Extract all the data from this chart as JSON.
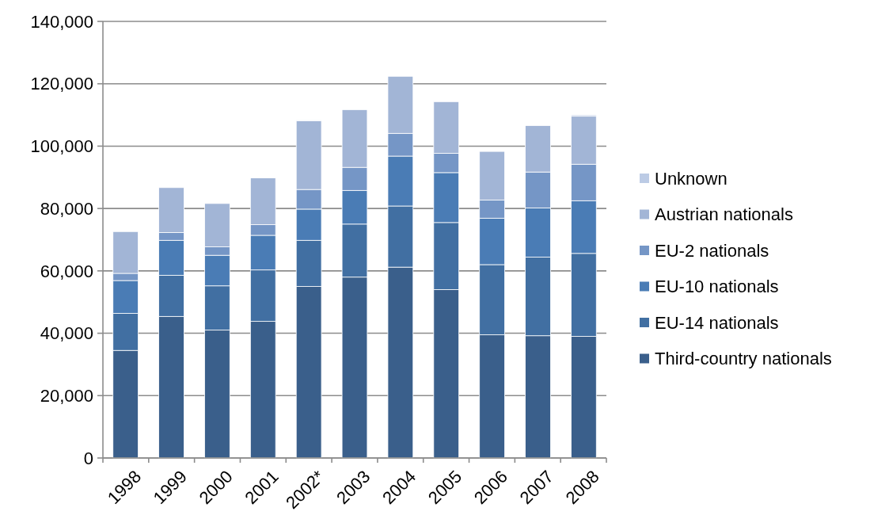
{
  "chart_data": {
    "type": "bar",
    "stacked": true,
    "categories": [
      "1998",
      "1999",
      "2000",
      "2001",
      "2002*",
      "2003",
      "2004",
      "2005",
      "2006",
      "2007",
      "2008"
    ],
    "series": [
      {
        "name": "Third-country nationals",
        "color": "#3a5f8b",
        "values": [
          34500,
          45400,
          41000,
          43800,
          55000,
          58000,
          61200,
          54000,
          39500,
          39200,
          39000
        ]
      },
      {
        "name": "EU-14 nationals",
        "color": "#416fa2",
        "values": [
          11900,
          13200,
          14200,
          16500,
          14800,
          17000,
          19600,
          21500,
          22500,
          25200,
          26600
        ]
      },
      {
        "name": "EU-10 nationals",
        "color": "#4a7cb5",
        "values": [
          10500,
          11200,
          9800,
          11100,
          10000,
          10800,
          16000,
          16000,
          14900,
          15800,
          16900
        ]
      },
      {
        "name": "EU-2 nationals",
        "color": "#7596c6",
        "values": [
          2300,
          2500,
          2700,
          3400,
          6300,
          7400,
          7300,
          6200,
          5800,
          11500,
          11700
        ]
      },
      {
        "name": "Austrian nationals",
        "color": "#a2b5d6",
        "values": [
          13400,
          14400,
          13900,
          15000,
          22000,
          18500,
          18300,
          16600,
          15600,
          14900,
          15400
        ]
      },
      {
        "name": "Unknown",
        "color": "#bccbe5",
        "values": [
          0,
          0,
          0,
          0,
          200,
          0,
          0,
          200,
          0,
          0,
          400
        ]
      }
    ],
    "ylim": [
      0,
      140000
    ],
    "yticks": [
      {
        "value": 0,
        "label": "0"
      },
      {
        "value": 20000,
        "label": "20,000"
      },
      {
        "value": 40000,
        "label": "40,000"
      },
      {
        "value": 60000,
        "label": "60,000"
      },
      {
        "value": 80000,
        "label": "80,000"
      },
      {
        "value": 100000,
        "label": "100,000"
      },
      {
        "value": 120000,
        "label": "120,000"
      },
      {
        "value": 140000,
        "label": "140,000"
      }
    ],
    "grid": "y",
    "legend": "right"
  }
}
